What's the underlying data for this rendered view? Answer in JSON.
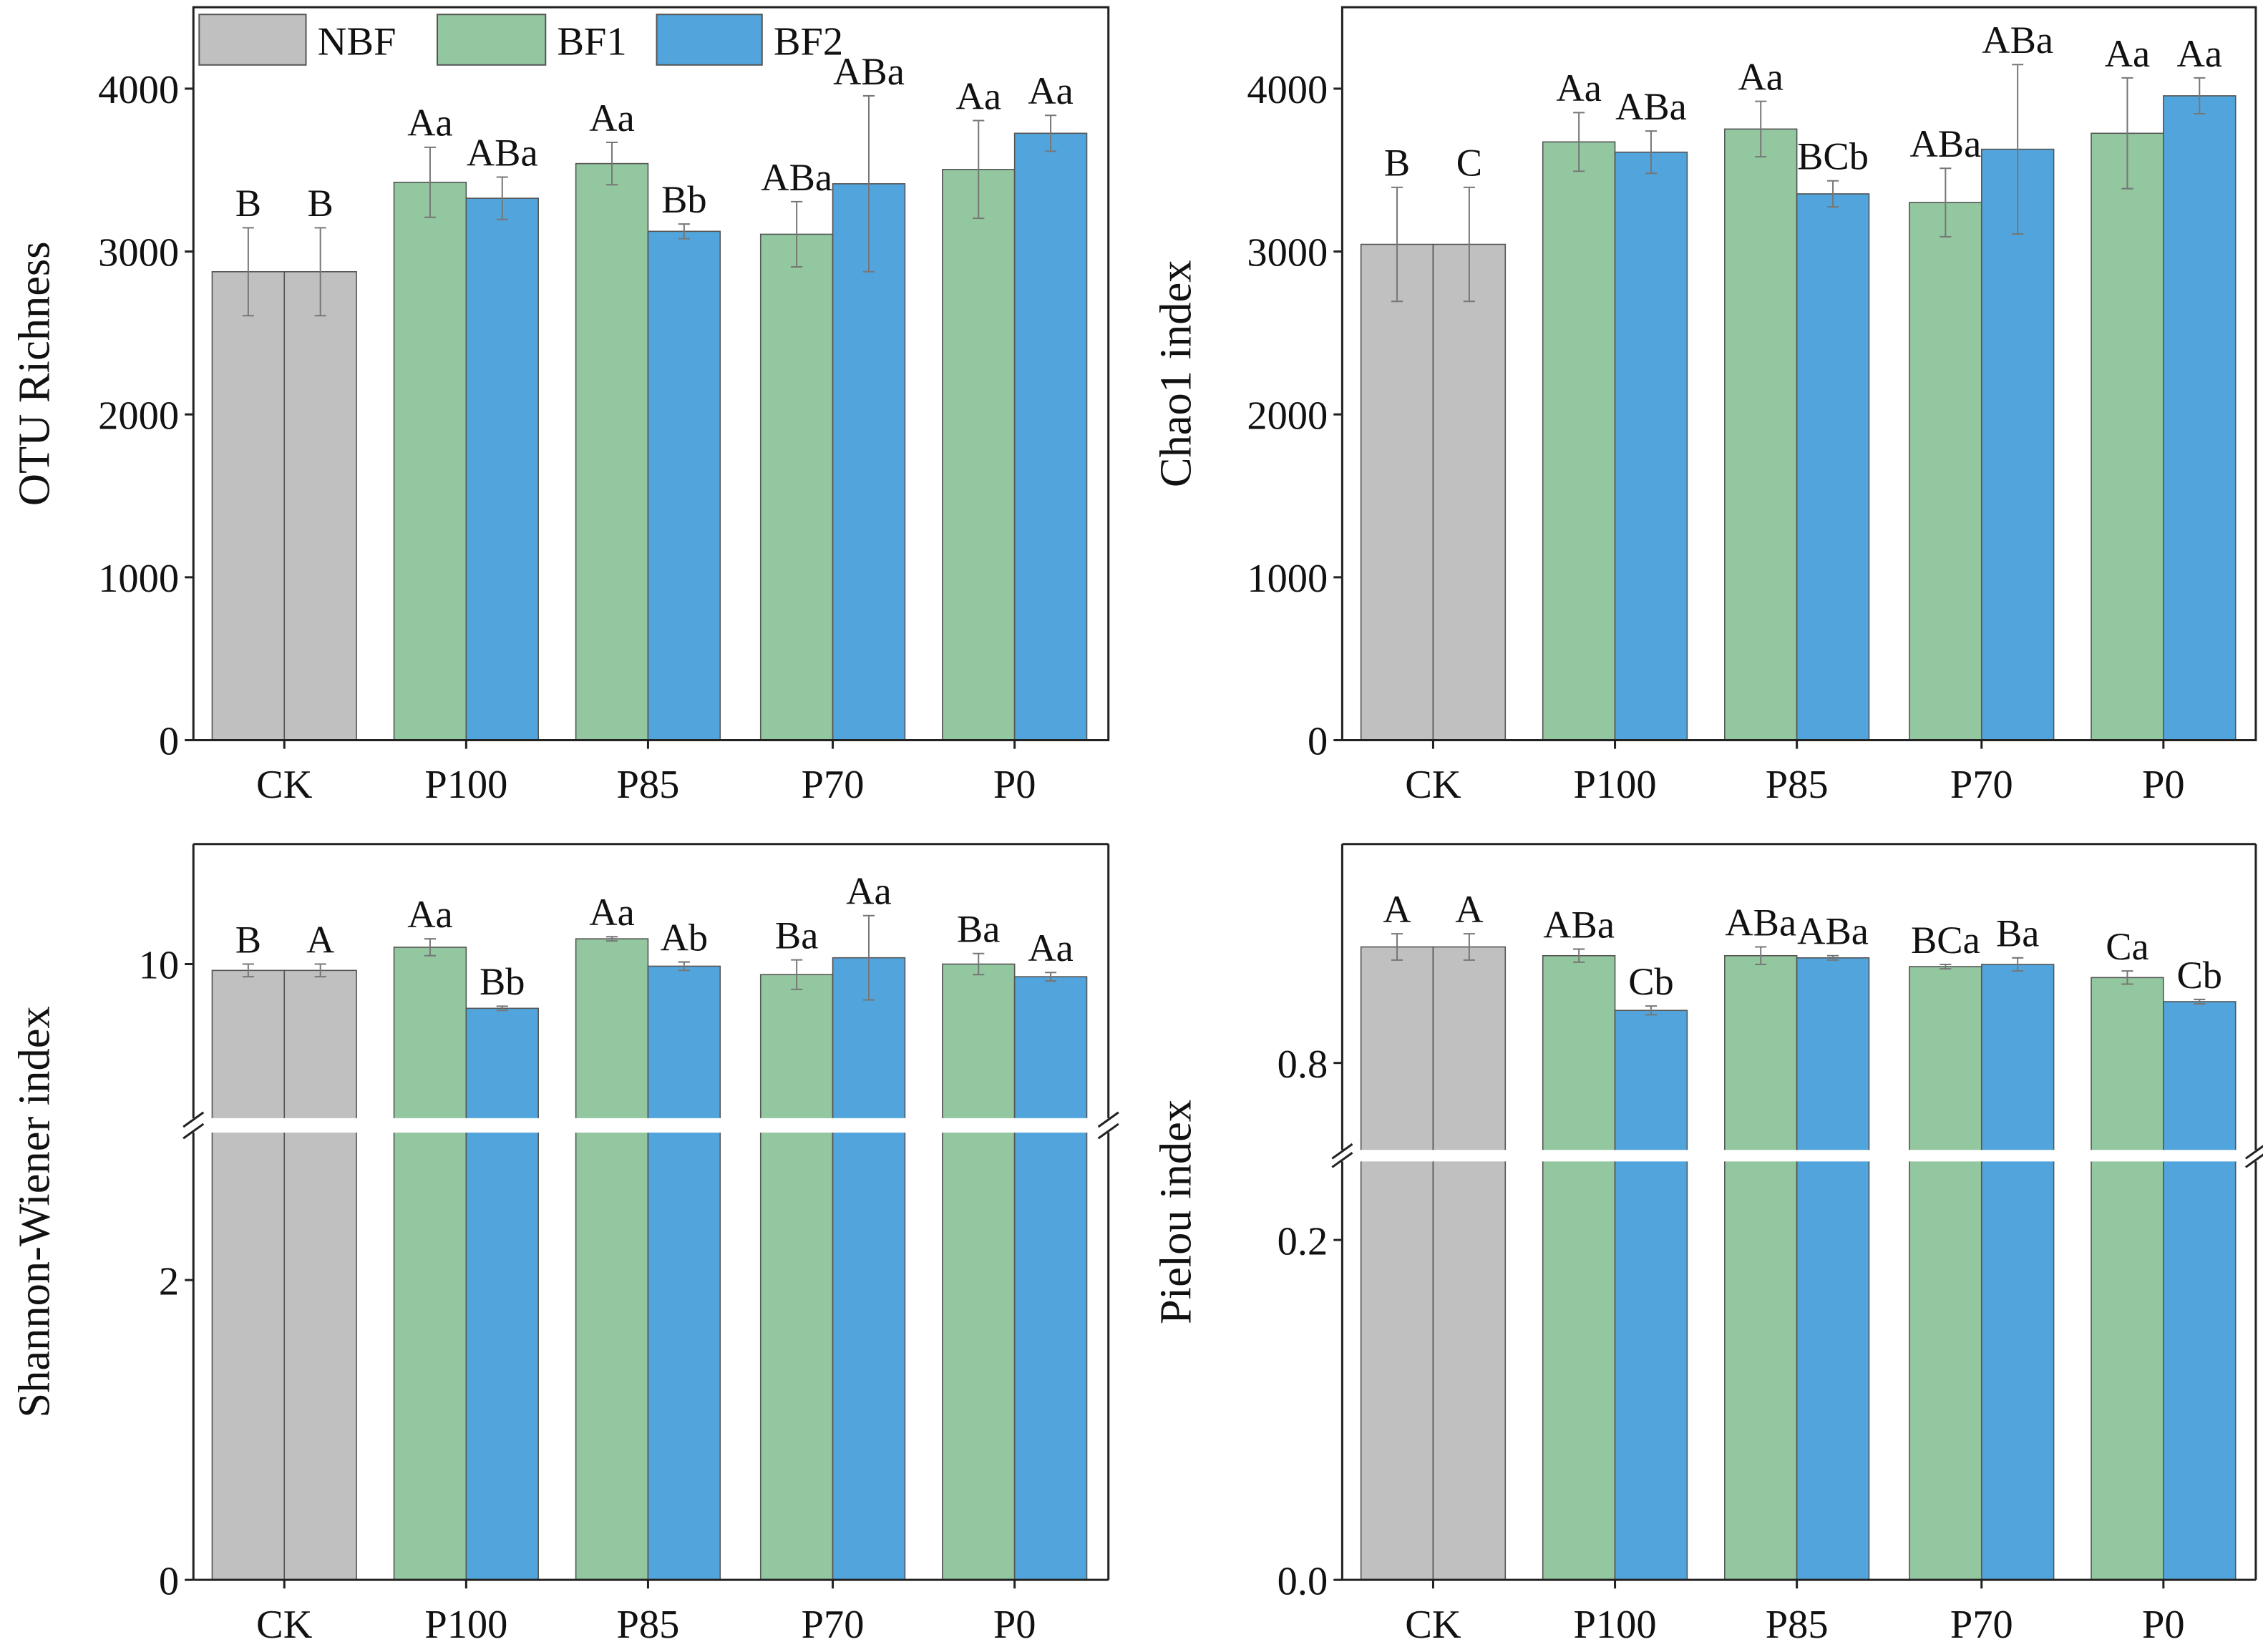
{
  "legend": [
    "NBF",
    "BF1",
    "BF2"
  ],
  "colors": {
    "NBF": "#c0c0c0",
    "BF1": "#93c79f",
    "BF2": "#52a5dc",
    "error": "#777777",
    "axis": "#222222"
  },
  "chart_data": [
    {
      "type": "bar",
      "ylabel": "OTU Richness",
      "categories": [
        "CK",
        "P100",
        "P85",
        "P70",
        "P0"
      ],
      "ylim": [
        0,
        4500
      ],
      "yticks": [
        0,
        1000,
        2000,
        3000,
        4000
      ],
      "series": [
        {
          "name": "bar1",
          "values": [
            2876,
            3425,
            3540,
            3106,
            3504
          ],
          "errors": [
            270,
            215,
            130,
            200,
            300
          ],
          "labels": [
            "B",
            "Aa",
            "Aa",
            "ABa",
            "Aa"
          ],
          "colors": [
            "NBF",
            "BF1",
            "BF1",
            "BF1",
            "BF1"
          ]
        },
        {
          "name": "bar2",
          "values": [
            2876,
            3327,
            3124,
            3416,
            3726
          ],
          "errors": [
            270,
            130,
            45,
            540,
            110
          ],
          "labels": [
            "B",
            "ABa",
            "Bb",
            "ABa",
            "Aa"
          ],
          "colors": [
            "NBF",
            "BF2",
            "BF2",
            "BF2",
            "BF2"
          ]
        }
      ]
    },
    {
      "type": "bar",
      "ylabel": "Chao1 index",
      "categories": [
        "CK",
        "P100",
        "P85",
        "P70",
        "P0"
      ],
      "ylim": [
        0,
        4500
      ],
      "yticks": [
        0,
        1000,
        2000,
        3000,
        4000
      ],
      "series": [
        {
          "name": "bar1",
          "values": [
            3044,
            3673,
            3752,
            3301,
            3726
          ],
          "errors": [
            350,
            180,
            170,
            210,
            340
          ],
          "labels": [
            "B",
            "Aa",
            "Aa",
            "ABa",
            "Aa"
          ],
          "colors": [
            "NBF",
            "BF1",
            "BF1",
            "BF1",
            "BF1"
          ]
        },
        {
          "name": "bar2",
          "values": [
            3044,
            3610,
            3354,
            3628,
            3956
          ],
          "errors": [
            350,
            130,
            80,
            520,
            110
          ],
          "labels": [
            "C",
            "ABa",
            "BCb",
            "ABa",
            "Aa"
          ],
          "colors": [
            "NBF",
            "BF2",
            "BF2",
            "BF2",
            "BF2"
          ]
        }
      ]
    },
    {
      "type": "bar",
      "ylabel": "Shannon-Wiener index",
      "categories": [
        "CK",
        "P100",
        "P85",
        "P70",
        "P0"
      ],
      "broken_axis": {
        "lower": [
          0,
          3.08
        ],
        "upper": [
          9.2,
          10.57
        ]
      },
      "yticks": [
        0,
        2,
        10
      ],
      "series": [
        {
          "name": "bar1",
          "values": [
            9.97,
            10.08,
            10.12,
            9.95,
            10.0
          ],
          "errors": [
            0.03,
            0.04,
            0.01,
            0.07,
            0.05
          ],
          "labels": [
            "B",
            "Aa",
            "Aa",
            "Ba",
            "Ba"
          ],
          "colors": [
            "NBF",
            "BF1",
            "BF1",
            "BF1",
            "BF1"
          ]
        },
        {
          "name": "bar2",
          "values": [
            9.97,
            9.79,
            9.99,
            10.03,
            9.94
          ],
          "errors": [
            0.03,
            0.01,
            0.02,
            0.2,
            0.02
          ],
          "labels": [
            "A",
            "Bb",
            "Ab",
            "Aa",
            "Aa"
          ],
          "colors": [
            "NBF",
            "BF2",
            "BF2",
            "BF2",
            "BF2"
          ]
        }
      ]
    },
    {
      "type": "bar",
      "ylabel": "Pielou index",
      "categories": [
        "CK",
        "P100",
        "P85",
        "P70",
        "P0"
      ],
      "broken_axis": {
        "lower": [
          0,
          0.253
        ],
        "upper": [
          0.755,
          0.9
        ]
      },
      "yticks": [
        0.0,
        0.2,
        0.8
      ],
      "ytick_labels": [
        "0.0",
        "0.2",
        "0.8"
      ],
      "series": [
        {
          "name": "bar1",
          "values": [
            0.853,
            0.849,
            0.849,
            0.844,
            0.839
          ],
          "errors": [
            0.006,
            0.003,
            0.004,
            0.001,
            0.003
          ],
          "labels": [
            "A",
            "ABa",
            "ABa",
            "BCa",
            "Ca"
          ],
          "colors": [
            "NBF",
            "BF1",
            "BF1",
            "BF1",
            "BF1"
          ]
        },
        {
          "name": "bar2",
          "values": [
            0.853,
            0.824,
            0.848,
            0.845,
            0.828
          ],
          "errors": [
            0.006,
            0.002,
            0.001,
            0.003,
            0.001
          ],
          "labels": [
            "A",
            "Cb",
            "ABa",
            "Ba",
            "Cb"
          ],
          "colors": [
            "NBF",
            "BF2",
            "BF2",
            "BF2",
            "BF2"
          ]
        }
      ]
    }
  ]
}
